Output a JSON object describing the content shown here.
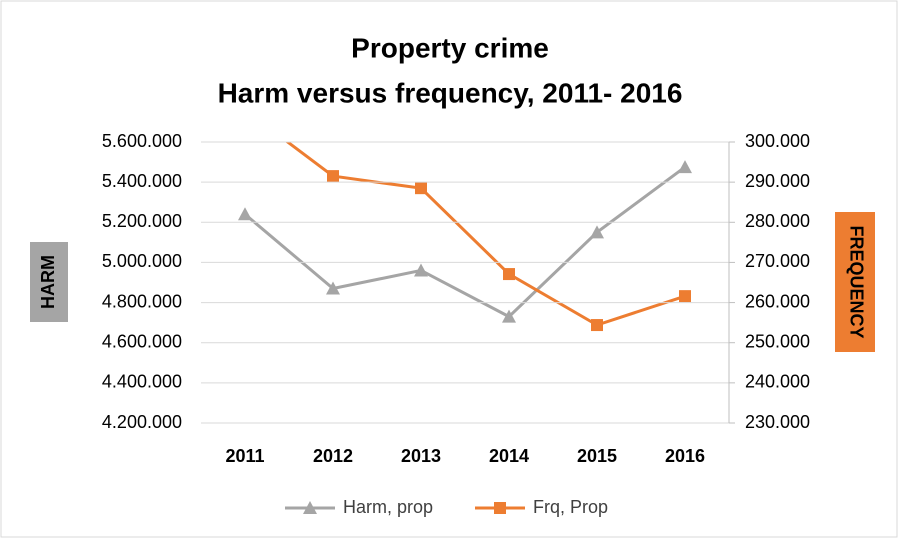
{
  "chart_data": {
    "type": "line",
    "title": "Property crime",
    "subtitle": "Harm versus frequency, 2011- 2016",
    "y_label": "HARM",
    "y2_label": "FREQUENCY",
    "categories": [
      "2011",
      "2012",
      "2013",
      "2014",
      "2015",
      "2016"
    ],
    "series": [
      {
        "name": "Harm, prop",
        "color": "#a5a5a5",
        "marker": "triangle",
        "values": [
          5240000,
          4870000,
          4960000,
          4730000,
          5150000,
          5475000
        ]
      },
      {
        "name": "Frq, Prop",
        "color": "#ed7d31",
        "marker": "square",
        "axis": "y2",
        "values": [
          308000,
          291500,
          288500,
          267100,
          254400,
          261600
        ]
      }
    ],
    "ylim": [
      4200000,
      5600000
    ],
    "yticks": [
      {
        "value": 4200000,
        "label": "4.200.000"
      },
      {
        "value": 4400000,
        "label": "4.400.000"
      },
      {
        "value": 4600000,
        "label": "4.600.000"
      },
      {
        "value": 4800000,
        "label": "4.800.000"
      },
      {
        "value": 5000000,
        "label": "5.000.000"
      },
      {
        "value": 5200000,
        "label": "5.200.000"
      },
      {
        "value": 5400000,
        "label": "5.400.000"
      },
      {
        "value": 5600000,
        "label": "5.600.000"
      }
    ],
    "y2lim": [
      230000,
      300000
    ],
    "y2ticks": [
      {
        "value": 230000,
        "label": "230.000"
      },
      {
        "value": 240000,
        "label": "240.000"
      },
      {
        "value": 250000,
        "label": "250.000"
      },
      {
        "value": 260000,
        "label": "260.000"
      },
      {
        "value": 270000,
        "label": "270.000"
      },
      {
        "value": 280000,
        "label": "280.000"
      },
      {
        "value": 290000,
        "label": "290.000"
      },
      {
        "value": 300000,
        "label": "300.000"
      }
    ],
    "grid": true,
    "legend": "bottom"
  }
}
